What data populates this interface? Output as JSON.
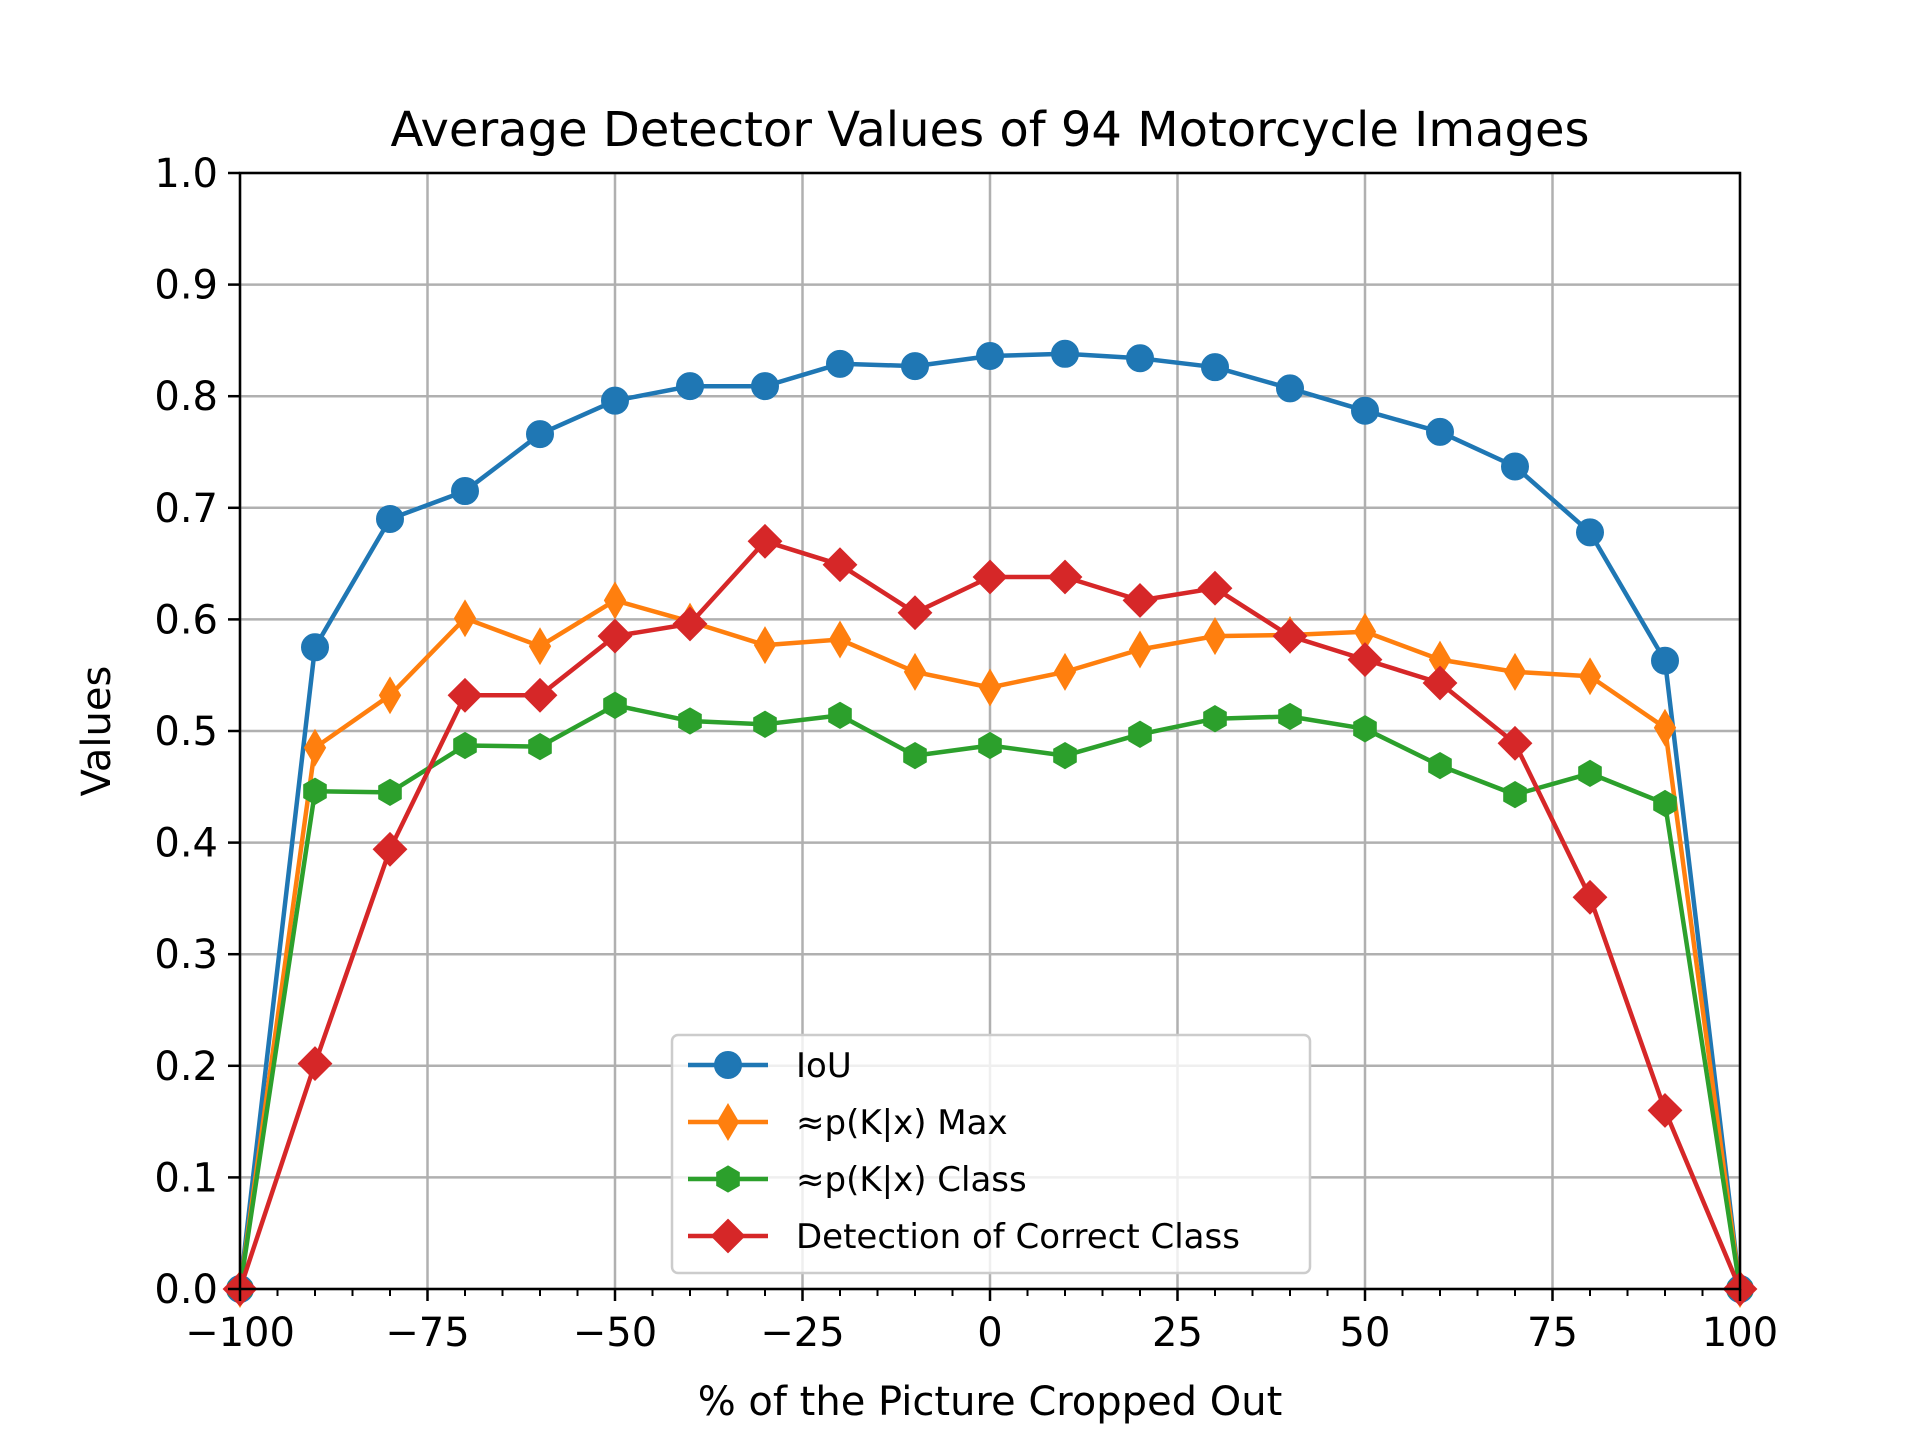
{
  "chart_data": {
    "type": "line",
    "title": "Average Detector Values of 94 Motorcycle Images",
    "xlabel": "% of the Picture Cropped Out",
    "ylabel": "Values",
    "xlim": [
      -100,
      100
    ],
    "ylim": [
      0.0,
      1.0
    ],
    "grid": true,
    "legend_position": "lower center",
    "x_ticks": [
      -100,
      -75,
      -50,
      -25,
      0,
      25,
      50,
      75,
      100
    ],
    "x_tick_labels": [
      "−100",
      "−75",
      "−50",
      "−25",
      "0",
      "25",
      "50",
      "75",
      "100"
    ],
    "y_ticks": [
      0.0,
      0.1,
      0.2,
      0.3,
      0.4,
      0.5,
      0.6,
      0.7,
      0.8,
      0.9,
      1.0
    ],
    "y_tick_labels": [
      "0.0",
      "0.1",
      "0.2",
      "0.3",
      "0.4",
      "0.5",
      "0.6",
      "0.7",
      "0.8",
      "0.9",
      "1.0"
    ],
    "x": [
      -100,
      -90,
      -80,
      -70,
      -60,
      -50,
      -40,
      -30,
      -20,
      -10,
      0,
      10,
      20,
      30,
      40,
      50,
      60,
      70,
      80,
      90,
      100
    ],
    "series": [
      {
        "name": "IoU",
        "color": "#1f77b4",
        "marker": "circle",
        "values": [
          0.0,
          0.575,
          0.69,
          0.715,
          0.766,
          0.796,
          0.809,
          0.809,
          0.829,
          0.827,
          0.836,
          0.838,
          0.834,
          0.826,
          0.807,
          0.787,
          0.768,
          0.737,
          0.678,
          0.563,
          0.0
        ]
      },
      {
        "name": "≈p(K|x) Max",
        "color": "#ff7f0e",
        "marker": "thin_diamond",
        "values": [
          0.0,
          0.485,
          0.532,
          0.601,
          0.576,
          0.617,
          0.598,
          0.577,
          0.582,
          0.553,
          0.539,
          0.553,
          0.573,
          0.585,
          0.586,
          0.589,
          0.564,
          0.553,
          0.549,
          0.503,
          0.0
        ]
      },
      {
        "name": "≈p(K|x) Class",
        "color": "#2ca02c",
        "marker": "hexagon",
        "values": [
          0.0,
          0.446,
          0.445,
          0.487,
          0.486,
          0.523,
          0.509,
          0.506,
          0.514,
          0.478,
          0.487,
          0.478,
          0.497,
          0.511,
          0.513,
          0.502,
          0.469,
          0.443,
          0.462,
          0.435,
          0.0
        ]
      },
      {
        "name": "Detection of Correct Class",
        "color": "#d62728",
        "marker": "diamond",
        "values": [
          0.0,
          0.202,
          0.394,
          0.532,
          0.532,
          0.585,
          0.596,
          0.67,
          0.649,
          0.606,
          0.638,
          0.638,
          0.617,
          0.628,
          0.585,
          0.564,
          0.543,
          0.489,
          0.351,
          0.16,
          0.0
        ]
      }
    ]
  }
}
